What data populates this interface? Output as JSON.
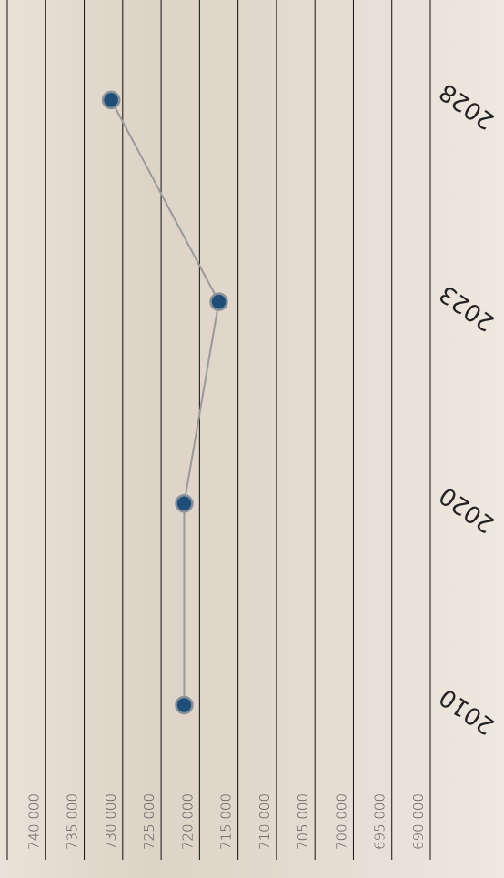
{
  "chart_data": {
    "type": "line",
    "categories": [
      "2010",
      "2020",
      "2023",
      "2028"
    ],
    "values": [
      722000,
      722000,
      717500,
      731500
    ],
    "color": "#1f4e79",
    "line_color": "#9a9a9a",
    "ylim": [
      745000,
      690000
    ],
    "yticks": [
      {
        "value": 740000,
        "label": "740,000"
      },
      {
        "value": 735000,
        "label": "735,000"
      },
      {
        "value": 730000,
        "label": "730,000"
      },
      {
        "value": 725000,
        "label": "725,000"
      },
      {
        "value": 720000,
        "label": "720,000"
      },
      {
        "value": 715000,
        "label": "715,000"
      },
      {
        "value": 710000,
        "label": "710,000"
      },
      {
        "value": 705000,
        "label": "705,000"
      },
      {
        "value": 700000,
        "label": "700,000"
      },
      {
        "value": 695000,
        "label": "695,000"
      },
      {
        "value": 690000,
        "label": "690,000"
      }
    ],
    "grid": true
  }
}
